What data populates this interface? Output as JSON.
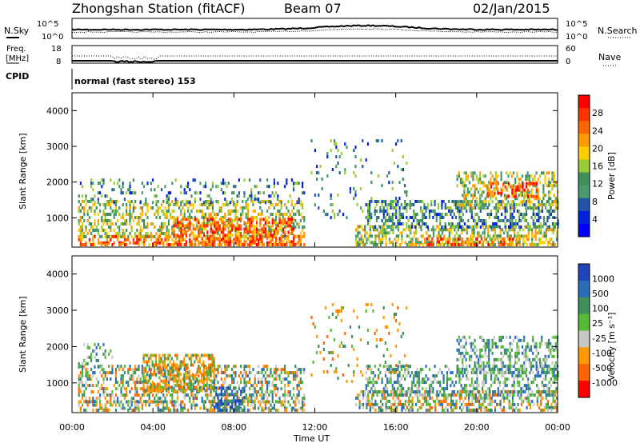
{
  "header": {
    "station": "Zhongshan Station (fitACF)",
    "beam": "Beam 07",
    "date": "02/Jan/2015"
  },
  "summary_panel": {
    "nsky_label": "N.Sky",
    "nsky_ticks": [
      "10^5",
      "10^0"
    ],
    "nsearch_label": "N.Search",
    "nsearch_ticks": [
      "10^5",
      "10^0"
    ],
    "freq_label_1": "Freq.",
    "freq_label_2": "[MHz]",
    "freq_ticks": [
      "18",
      "8"
    ],
    "nave_label": "Nave",
    "nave_ticks": [
      "60",
      "0"
    ],
    "cpid_label": "CPID",
    "mode_text": "normal (fast stereo) 153"
  },
  "chart_data": [
    {
      "type": "heatmap",
      "name": "power",
      "ylabel": "Slant Range [km]",
      "ylim": [
        180,
        4500
      ],
      "yticks": [
        "4000",
        "3000",
        "2000",
        "1000"
      ],
      "xlim": [
        0,
        24
      ],
      "colorbar_label": "Power [dB]",
      "colorbar_ticks": [
        "28",
        "24",
        "20",
        "16",
        "12",
        "8",
        "4"
      ],
      "colorbar_colors": [
        "#ff0000",
        "#ff3300",
        "#ff6600",
        "#ff9900",
        "#ffcc00",
        "#99cc33",
        "#3e8f5a",
        "#4a9a70",
        "#2255aa",
        "#0022dd",
        "#0000ff"
      ],
      "grid": false
    },
    {
      "type": "heatmap",
      "name": "velocity",
      "ylabel": "Slant Range [km]",
      "ylim": [
        180,
        4500
      ],
      "yticks": [
        "4000",
        "3000",
        "2000",
        "1000"
      ],
      "xlim": [
        0,
        24
      ],
      "xlabel": "Time UT",
      "xticks": [
        "00:00",
        "04:00",
        "08:00",
        "12:00",
        "16:00",
        "20:00",
        "00:00"
      ],
      "colorbar_label": "Velocity [m s⁻¹]",
      "colorbar_ticks": [
        "1000",
        "500",
        "100",
        "25",
        "-25",
        "-100",
        "-500",
        "-1000"
      ],
      "colorbar_colors": [
        "#2244bb",
        "#2a6dbb",
        "#3e8f5a",
        "#55bb33",
        "#c8c8c0",
        "#ff9900",
        "#ff6600",
        "#ff0000"
      ],
      "grid": false
    }
  ]
}
